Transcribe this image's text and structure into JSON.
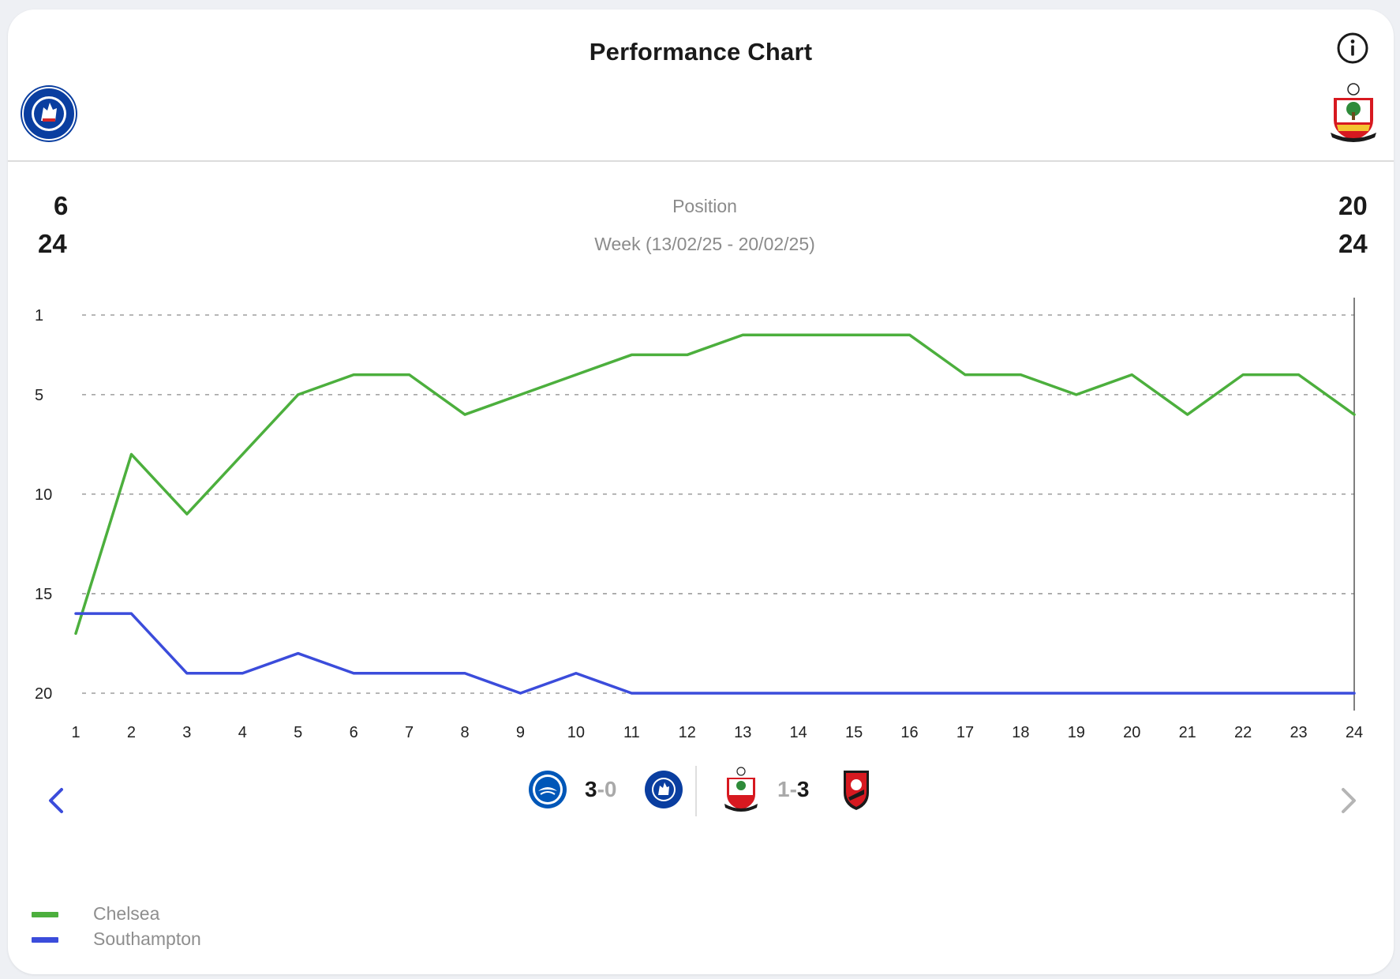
{
  "title": "Performance Chart",
  "icons": {
    "info": "info-icon",
    "prev": "chevron-left-icon",
    "next": "chevron-right-icon"
  },
  "teams": {
    "left": {
      "name": "Chelsea",
      "crest": "chelsea-crest",
      "stat_primary": "6",
      "stat_secondary": "24"
    },
    "right": {
      "name": "Southampton",
      "crest": "southampton-crest",
      "stat_primary": "20",
      "stat_secondary": "24"
    }
  },
  "header": {
    "metric": "Position",
    "period": "Week (13/02/25 - 20/02/25)"
  },
  "colors": {
    "chelsea": "#4caf3d",
    "southampton": "#3b4cdb",
    "accent": "#3b4cdb"
  },
  "matches": [
    {
      "home_crest": "brighton-crest",
      "away_crest": "chelsea-crest",
      "home_score": "3",
      "separator": "-",
      "away_score": "0"
    },
    {
      "home_crest": "southampton-crest",
      "away_crest": "bournemouth-crest",
      "home_score": "1",
      "separator": "-",
      "away_score": "3"
    }
  ],
  "chart_data": {
    "type": "line",
    "title": "Performance Chart",
    "xlabel": "",
    "ylabel": "Position",
    "x": [
      1,
      2,
      3,
      4,
      5,
      6,
      7,
      8,
      9,
      10,
      11,
      12,
      13,
      14,
      15,
      16,
      17,
      18,
      19,
      20,
      21,
      22,
      23,
      24
    ],
    "y_ticks": [
      1,
      5,
      10,
      15,
      20
    ],
    "ylim": [
      20,
      1
    ],
    "y_inverted": true,
    "grid": true,
    "legend_position": "bottom-left",
    "series": [
      {
        "name": "Chelsea",
        "color": "#4caf3d",
        "values": [
          17,
          8,
          11,
          8,
          5,
          4,
          4,
          6,
          5,
          4,
          3,
          3,
          2,
          2,
          2,
          2,
          4,
          4,
          5,
          4,
          6,
          4,
          4,
          6
        ]
      },
      {
        "name": "Southampton",
        "color": "#3b4cdb",
        "values": [
          16,
          16,
          19,
          19,
          18,
          19,
          19,
          19,
          20,
          19,
          20,
          20,
          20,
          20,
          20,
          20,
          20,
          20,
          20,
          20,
          20,
          20,
          20,
          20
        ]
      }
    ]
  }
}
